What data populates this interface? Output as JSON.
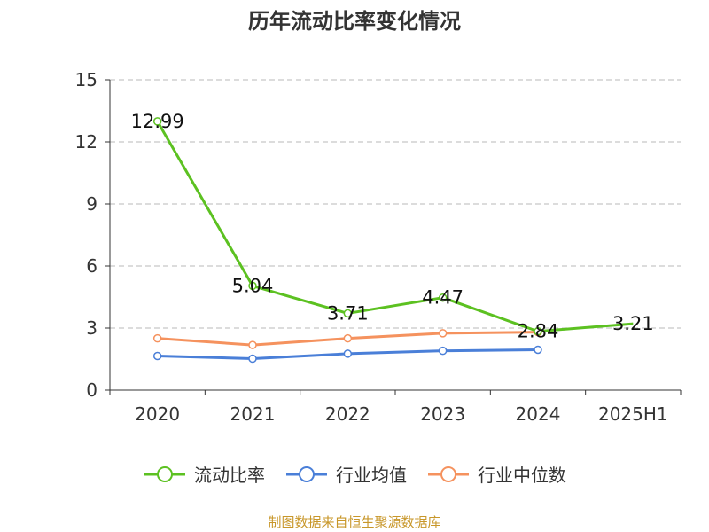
{
  "chart_data": {
    "type": "line",
    "title": "历年流动比率变化情况",
    "categories": [
      "2020",
      "2021",
      "2022",
      "2023",
      "2024",
      "2025H1"
    ],
    "ylim": [
      0,
      15
    ],
    "yticks": [
      "0",
      "3",
      "6",
      "9",
      "12",
      "15"
    ],
    "grid": "horizontal dashed",
    "legend_position": "bottom",
    "series": [
      {
        "name": "流动比率",
        "color": "#5cc121",
        "values": [
          12.99,
          5.04,
          3.71,
          4.47,
          2.84,
          3.21
        ],
        "labels": [
          "12.99",
          "5.04",
          "3.71",
          "4.47",
          "2.84",
          "3.21"
        ]
      },
      {
        "name": "行业均值",
        "color": "#4a7fd8",
        "values": [
          1.65,
          1.52,
          1.76,
          1.9,
          1.95,
          null
        ]
      },
      {
        "name": "行业中位数",
        "color": "#f5925e",
        "values": [
          2.5,
          2.18,
          2.5,
          2.75,
          2.8,
          null
        ]
      }
    ]
  },
  "source": "制图数据来自恒生聚源数据库"
}
